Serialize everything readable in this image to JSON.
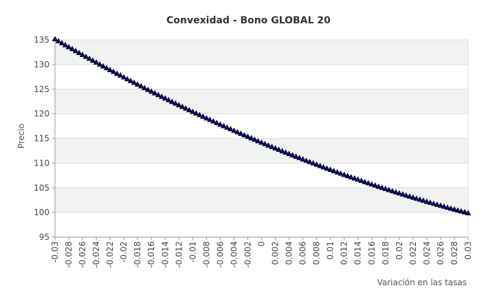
{
  "chart_data": {
    "type": "scatter",
    "title": "Convexidad - Bono GLOBAL 20",
    "xlabel": "Variación en las tasas",
    "ylabel": "Precio",
    "xlim": [
      -0.03,
      0.03
    ],
    "ylim": [
      95,
      135
    ],
    "x_ticks": [
      "-0.03",
      "-0.028",
      "-0.026",
      "-0.024",
      "-0.022",
      "-0.02",
      "-0.018",
      "-0.016",
      "-0.014",
      "-0.012",
      "-0.01",
      "-0.008",
      "-0.006",
      "-0.004",
      "-0.002",
      "0",
      "0.002",
      "0.004",
      "0.006",
      "0.008",
      "0.01",
      "0.012",
      "0.014",
      "0.016",
      "0.018",
      "0.02",
      "0.022",
      "0.024",
      "0.026",
      "0.028",
      "0.03"
    ],
    "y_ticks": [
      "95",
      "100",
      "105",
      "110",
      "115",
      "120",
      "125",
      "130",
      "135"
    ],
    "grid": true,
    "marker": "triangle",
    "marker_color": "#000080",
    "band_color": "#f2f2f2",
    "x_step": 0.0005,
    "model": {
      "y0": 114.2,
      "slope": -588,
      "curvature": 3700
    }
  }
}
